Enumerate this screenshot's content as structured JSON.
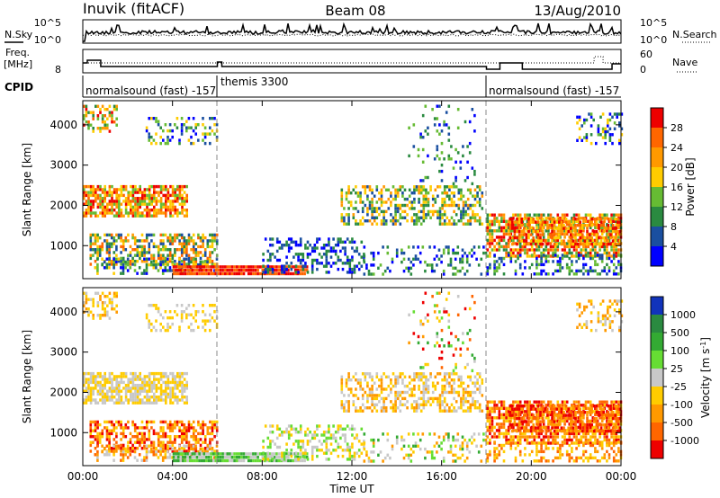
{
  "header": {
    "station": "Inuvik (fitACF)",
    "beam": "Beam 08",
    "date": "13/Aug/2010"
  },
  "sky_panel": {
    "left_label": "N.Sky",
    "right_label": "N.Search",
    "ticks_left": [
      "10^5",
      "10^0"
    ],
    "ticks_right": [
      "10^5",
      "10^0"
    ]
  },
  "freq_panel": {
    "left_label_line1": "Freq.",
    "left_label_line2": "[MHz]",
    "right_label": "Nave",
    "ticks_left": [
      "8"
    ],
    "ticks_right": [
      "60",
      "0"
    ]
  },
  "cpid_panel": {
    "label": "CPID",
    "segments": [
      {
        "text": "normalsound (fast) -157",
        "start_h": 0
      },
      {
        "text": "themis 3300",
        "start_h": 6
      },
      {
        "text": "normalsound (fast) -157",
        "start_h": 18
      }
    ]
  },
  "chart_data": [
    {
      "type": "heatmap",
      "name": "power",
      "ylabel": "Slant Range [km]",
      "xlabel": "Time UT",
      "x_ticks": [
        "00:00",
        "04:00",
        "08:00",
        "12:00",
        "16:00",
        "20:00",
        "00:00"
      ],
      "x_range_hours": [
        0,
        24
      ],
      "y_ticks": [
        1000,
        2000,
        3000,
        4000
      ],
      "ylim": [
        180,
        4600
      ],
      "colorbar": {
        "label": "Power [dB]",
        "ticks": [
          "28",
          "24",
          "20",
          "16",
          "12",
          "8",
          "4"
        ],
        "colors": [
          "#ee0000",
          "#ff6600",
          "#ff9900",
          "#ffcc00",
          "#66bb33",
          "#2a8a40",
          "#1a4fa0",
          "#0000ff"
        ]
      }
    },
    {
      "type": "heatmap",
      "name": "velocity",
      "ylabel": "Slant Range [km]",
      "xlabel": "Time UT",
      "x_ticks": [
        "00:00",
        "04:00",
        "08:00",
        "12:00",
        "16:00",
        "20:00",
        "00:00"
      ],
      "x_range_hours": [
        0,
        24
      ],
      "y_ticks": [
        1000,
        2000,
        3000,
        4000
      ],
      "ylim": [
        180,
        4600
      ],
      "colorbar": {
        "label": "Velocity [m s^-1]",
        "ticks": [
          "1000",
          "500",
          "100",
          "25",
          "-25",
          "-100",
          "-500",
          "-1000"
        ],
        "colors": [
          "#1133bb",
          "#2a8a40",
          "#33aa33",
          "#66dd33",
          "#c8c8c8",
          "#ffcc00",
          "#ff9900",
          "#ff6600",
          "#ee0000"
        ]
      }
    }
  ]
}
